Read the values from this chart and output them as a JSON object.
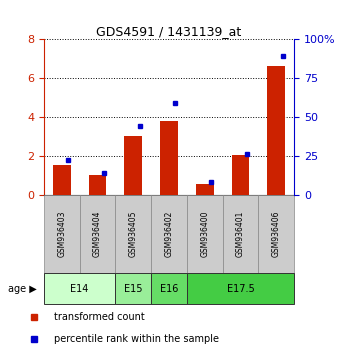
{
  "title": "GDS4591 / 1431139_at",
  "samples": [
    "GSM936403",
    "GSM936404",
    "GSM936405",
    "GSM936402",
    "GSM936400",
    "GSM936401",
    "GSM936406"
  ],
  "transformed_count": [
    1.5,
    1.0,
    3.0,
    3.8,
    0.55,
    2.05,
    6.6
  ],
  "percentile_rank_pct": [
    22,
    14,
    44,
    59,
    8,
    26,
    89
  ],
  "ylim_left": [
    0,
    8
  ],
  "ylim_right": [
    0,
    100
  ],
  "yticks_left": [
    0,
    2,
    4,
    6,
    8
  ],
  "ytick_labels_left": [
    "0",
    "2",
    "4",
    "6",
    "8"
  ],
  "yticks_right": [
    0,
    25,
    50,
    75,
    100
  ],
  "ytick_labels_right": [
    "0",
    "25",
    "50",
    "75",
    "100%"
  ],
  "bar_color": "#cc2200",
  "marker_color": "#0000cc",
  "age_groups": [
    {
      "label": "E14",
      "spans": [
        0,
        1
      ],
      "color": "#ccffcc"
    },
    {
      "label": "E15",
      "spans": [
        2
      ],
      "color": "#99ee99"
    },
    {
      "label": "E16",
      "spans": [
        3
      ],
      "color": "#66dd66"
    },
    {
      "label": "E17.5",
      "spans": [
        4,
        5,
        6
      ],
      "color": "#44cc44"
    }
  ],
  "sample_box_color": "#cccccc",
  "legend_red_label": "transformed count",
  "legend_blue_label": "percentile rank within the sample"
}
